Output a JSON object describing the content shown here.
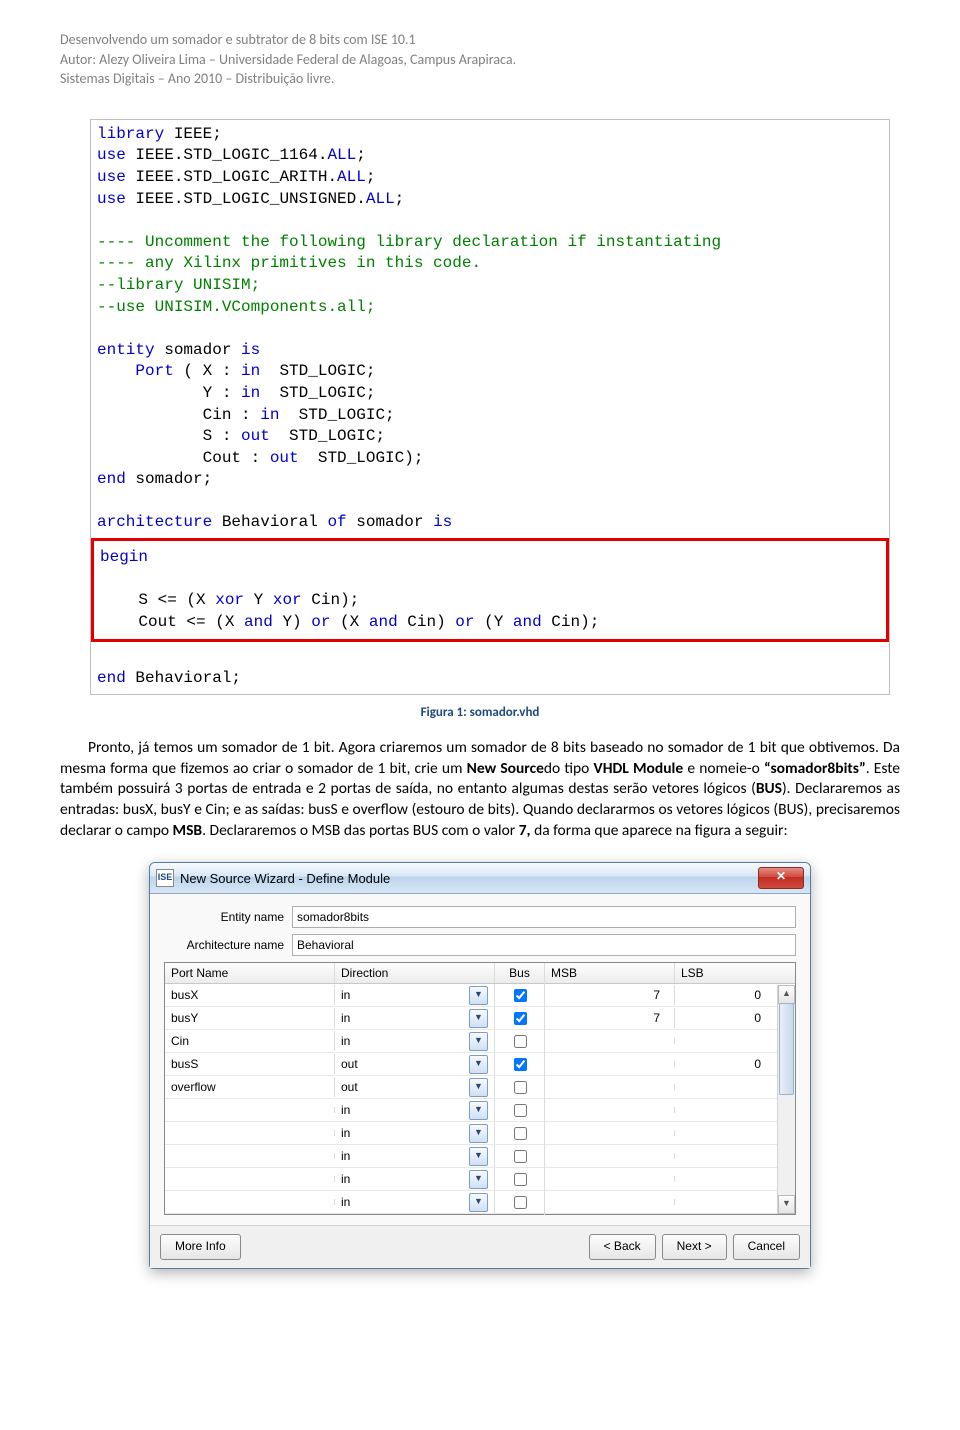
{
  "header": {
    "line1": "Desenvolvendo um somador e subtrator de 8 bits com ISE 10.1",
    "line2": "Autor: Alezy Oliveira Lima – Universidade Federal de Alagoas, Campus Arapiraca.",
    "line3": "Sistemas Digitais – Ano 2010 – Distribuição livre."
  },
  "code": {
    "l1a": "library",
    "l1b": " IEEE;",
    "l2a": "use",
    "l2b": " IEEE.STD_LOGIC_1164.",
    "l2c": "ALL",
    "l2d": ";",
    "l3a": "use",
    "l3b": " IEEE.STD_LOGIC_ARITH.",
    "l3c": "ALL",
    "l3d": ";",
    "l4a": "use",
    "l4b": " IEEE.STD_LOGIC_UNSIGNED.",
    "l4c": "ALL",
    "l4d": ";",
    "c1": "---- Uncomment the following library declaration if instantiating",
    "c2": "---- any Xilinx primitives in this code.",
    "c3": "--library UNISIM;",
    "c4": "--use UNISIM.VComponents.all;",
    "e1a": "entity",
    "e1b": " somador ",
    "e1c": "is",
    "e2a": "    Port",
    "e2b": " ( X : ",
    "e2c": "in",
    "e2d": "  STD_LOGIC;",
    "e3a": "           Y : ",
    "e3b": "in",
    "e3c": "  STD_LOGIC;",
    "e4a": "           Cin : ",
    "e4b": "in",
    "e4c": "  STD_LOGIC;",
    "e5a": "           S : ",
    "e5b": "out",
    "e5c": "  STD_LOGIC;",
    "e6a": "           Cout : ",
    "e6b": "out",
    "e6c": "  STD_LOGIC);",
    "e7a": "end",
    "e7b": " somador;",
    "a1a": "architecture",
    "a1b": " Behavioral ",
    "a1c": "of",
    "a1d": " somador ",
    "a1e": "is",
    "b1": "begin",
    "s1a": "    S <= (X ",
    "s1b": "xor",
    "s1c": " Y ",
    "s1d": "xor",
    "s1e": " Cin);",
    "s2a": "    Cout <= (X ",
    "s2b": "and",
    "s2c": " Y) ",
    "s2d": "or",
    "s2e": " (X ",
    "s2f": "and",
    "s2g": " Cin) ",
    "s2h": "or",
    "s2i": " (Y ",
    "s2j": "and",
    "s2k": " Cin);",
    "end1a": "end",
    "end1b": " Behavioral;"
  },
  "caption": "Figura 1: somador.vhd",
  "para": "Pronto, já temos um somador de 1 bit. Agora criaremos um somador de 8 bits baseado no somador de 1 bit que obtivemos. Da mesma forma que fizemos ao criar o somador de 1 bit, crie um New Sourcedo tipo VHDL Module e nomeie-o “somador8bits”. Este também possuirá 3 portas de entrada e 2 portas de saída, no entanto algumas destas serão vetores lógicos (BUS). Declararemos as entradas: busX, busY e Cin; e as saídas: busS e overflow (estouro de bits). Quando declararmos os vetores lógicos (BUS), precisaremos declarar o campo MSB. Declararemos o MSB das portas BUS com o valor 7, da forma que aparece na figura a seguir:",
  "dialog": {
    "title": "New Source Wizard - Define Module",
    "entity_label": "Entity name",
    "entity_value": "somador8bits",
    "arch_label": "Architecture name",
    "arch_value": "Behavioral",
    "col_port": "Port Name",
    "col_dir": "Direction",
    "col_bus": "Bus",
    "col_msb": "MSB",
    "col_lsb": "LSB",
    "rows": [
      {
        "port": "busX",
        "dir": "in",
        "bus": true,
        "msb": "7",
        "lsb": "0"
      },
      {
        "port": "busY",
        "dir": "in",
        "bus": true,
        "msb": "7",
        "lsb": "0"
      },
      {
        "port": "Cin",
        "dir": "in",
        "bus": false,
        "msb": "",
        "lsb": ""
      },
      {
        "port": "busS",
        "dir": "out",
        "bus": true,
        "msb": "",
        "lsb": "0"
      },
      {
        "port": "overflow",
        "dir": "out",
        "bus": false,
        "msb": "",
        "lsb": ""
      },
      {
        "port": "",
        "dir": "in",
        "bus": false,
        "msb": "",
        "lsb": ""
      },
      {
        "port": "",
        "dir": "in",
        "bus": false,
        "msb": "",
        "lsb": ""
      },
      {
        "port": "",
        "dir": "in",
        "bus": false,
        "msb": "",
        "lsb": ""
      },
      {
        "port": "",
        "dir": "in",
        "bus": false,
        "msb": "",
        "lsb": ""
      },
      {
        "port": "",
        "dir": "in",
        "bus": false,
        "msb": "",
        "lsb": ""
      }
    ],
    "btn_more": "More Info",
    "btn_back": "< Back",
    "btn_next": "Next >",
    "btn_cancel": "Cancel"
  },
  "colors": {
    "keyword": "#0000cc",
    "comment": "#008000",
    "redbox": "#e00000",
    "caption": "#1f497d",
    "header_gray": "#808080"
  }
}
